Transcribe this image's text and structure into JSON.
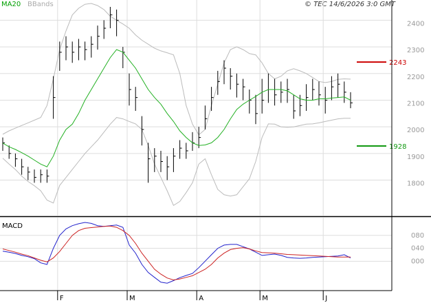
{
  "chart_data": [
    {
      "type": "ohlc",
      "attribution": "© TEC 14/6/2026 3:0 GMT",
      "grid": true,
      "categories": [
        null,
        null,
        null,
        null,
        null,
        null,
        null,
        null,
        null,
        "F",
        null,
        null,
        null,
        null,
        null,
        null,
        null,
        null,
        null,
        null,
        "M",
        null,
        null,
        null,
        null,
        null,
        null,
        null,
        null,
        null,
        null,
        "A",
        null,
        null,
        null,
        null,
        null,
        null,
        null,
        null,
        null,
        "M",
        null,
        null,
        null,
        null,
        null,
        null,
        null,
        null,
        null,
        "J",
        null,
        null,
        null,
        null
      ],
      "high": [
        1960,
        1930,
        1900,
        1880,
        1850,
        1840,
        1840,
        1840,
        2190,
        2320,
        2340,
        2320,
        2330,
        2320,
        2340,
        2380,
        2400,
        2450,
        2440,
        2300,
        2200,
        2150,
        2040,
        1940,
        1920,
        1910,
        1890,
        1920,
        1950,
        1940,
        1980,
        2000,
        2080,
        2150,
        2210,
        2250,
        2220,
        2200,
        2180,
        2140,
        2120,
        2180,
        2200,
        2180,
        2170,
        2180,
        2120,
        2120,
        2160,
        2180,
        2170,
        2150,
        2190,
        2200,
        2170,
        2130
      ],
      "low": [
        1910,
        1880,
        1850,
        1820,
        1800,
        1790,
        1790,
        1790,
        2030,
        2210,
        2250,
        2240,
        2250,
        2250,
        2260,
        2290,
        2330,
        2370,
        2340,
        2220,
        2080,
        2060,
        1930,
        1790,
        1830,
        1830,
        1800,
        1830,
        1880,
        1880,
        1910,
        1920,
        1990,
        2060,
        2120,
        2160,
        2140,
        2110,
        2100,
        2050,
        2010,
        2050,
        2090,
        2080,
        2090,
        2090,
        2030,
        2040,
        2060,
        2100,
        2080,
        2050,
        2100,
        2110,
        2090,
        2070
      ],
      "close": [
        1940,
        1900,
        1880,
        1850,
        1830,
        1810,
        1820,
        1815,
        2110,
        2280,
        2300,
        2280,
        2300,
        2290,
        2310,
        2340,
        2370,
        2420,
        2400,
        2280,
        2140,
        2110,
        1990,
        1880,
        1890,
        1870,
        1850,
        1890,
        1920,
        1910,
        1940,
        1960,
        2030,
        2110,
        2170,
        2220,
        2190,
        2160,
        2150,
        2100,
        2050,
        2100,
        2140,
        2120,
        2130,
        2140,
        2060,
        2080,
        2110,
        2140,
        2120,
        2100,
        2150,
        2160,
        2130,
        2090
      ],
      "color": "#000000",
      "series": [
        {
          "name": "MA20",
          "color": "#22b022",
          "values": [
            1939,
            1925,
            1915,
            1903,
            1890,
            1875,
            1860,
            1850,
            1890,
            1950,
            1990,
            2010,
            2050,
            2100,
            2140,
            2180,
            2220,
            2260,
            2290,
            2280,
            2250,
            2220,
            2180,
            2140,
            2110,
            2085,
            2050,
            2020,
            1985,
            1960,
            1940,
            1930,
            1932,
            1940,
            1960,
            1990,
            2030,
            2065,
            2085,
            2100,
            2114,
            2130,
            2140,
            2140,
            2140,
            2135,
            2120,
            2105,
            2100,
            2100,
            2105,
            2105,
            2108,
            2110,
            2112,
            2100
          ]
        },
        {
          "name": "BBands",
          "color": "#bbbbbb",
          "upper": [
            1972,
            1985,
            1995,
            2005,
            2015,
            2025,
            2035,
            2080,
            2180,
            2290,
            2360,
            2420,
            2445,
            2460,
            2463,
            2455,
            2440,
            2415,
            2400,
            2386,
            2370,
            2345,
            2325,
            2310,
            2295,
            2285,
            2278,
            2270,
            2200,
            2080,
            2010,
            1970,
            1990,
            2080,
            2160,
            2240,
            2290,
            2300,
            2290,
            2275,
            2270,
            2240,
            2200,
            2180,
            2190,
            2210,
            2218,
            2210,
            2200,
            2185,
            2170,
            2166,
            2170,
            2178,
            2180,
            2179
          ],
          "lower": [
            1882,
            1860,
            1840,
            1815,
            1795,
            1779,
            1760,
            1725,
            1714,
            1780,
            1810,
            1840,
            1870,
            1900,
            1925,
            1950,
            1980,
            2010,
            2035,
            2030,
            2020,
            2011,
            1990,
            1930,
            1860,
            1810,
            1760,
            1705,
            1720,
            1753,
            1790,
            1860,
            1880,
            1820,
            1765,
            1745,
            1740,
            1745,
            1775,
            1805,
            1870,
            1960,
            2011,
            2010,
            2000,
            1998,
            2000,
            2005,
            2010,
            2011,
            2015,
            2020,
            2025,
            2030,
            2032,
            2032
          ]
        }
      ],
      "levels": [
        {
          "value": 2243,
          "color": "#cc0000"
        },
        {
          "value": 1928,
          "color": "#119911"
        }
      ],
      "ylim": [
        1667,
        2476
      ],
      "yticks": [
        1800,
        1900,
        2000,
        2100,
        2200,
        2300,
        2400
      ]
    },
    {
      "type": "macd",
      "title": "MACD",
      "grid": true,
      "series": [
        {
          "color": "#2222cc",
          "values": [
            31,
            28,
            24,
            18,
            14,
            8,
            -5,
            -10,
            40,
            80,
            100,
            110,
            116,
            120,
            117,
            110,
            108,
            110,
            112,
            105,
            50,
            25,
            -10,
            -35,
            -50,
            -65,
            -68,
            -60,
            -51,
            -44,
            -38,
            -20,
            0,
            20,
            40,
            50,
            52,
            52,
            45,
            38,
            28,
            18,
            20,
            22,
            18,
            12,
            10,
            9,
            10,
            12,
            13,
            14,
            15,
            16,
            20,
            10
          ]
        },
        {
          "color": "#cc2222",
          "values": [
            38,
            33,
            28,
            22,
            17,
            10,
            3,
            -2,
            10,
            30,
            55,
            80,
            95,
            102,
            104,
            106,
            108,
            109,
            105,
            95,
            80,
            55,
            25,
            0,
            -25,
            -40,
            -52,
            -58,
            -55,
            -50,
            -45,
            -35,
            -25,
            -10,
            10,
            25,
            36,
            40,
            42,
            38,
            32,
            27,
            26,
            25,
            23,
            21,
            20,
            19,
            18,
            17,
            16,
            15,
            14,
            13,
            13,
            13
          ]
        }
      ],
      "ylim": [
        -91,
        135
      ],
      "yticks": [
        {
          "value": 0,
          "label": "000"
        },
        {
          "value": 40,
          "label": "040"
        },
        {
          "value": 80,
          "label": "080"
        }
      ]
    }
  ]
}
